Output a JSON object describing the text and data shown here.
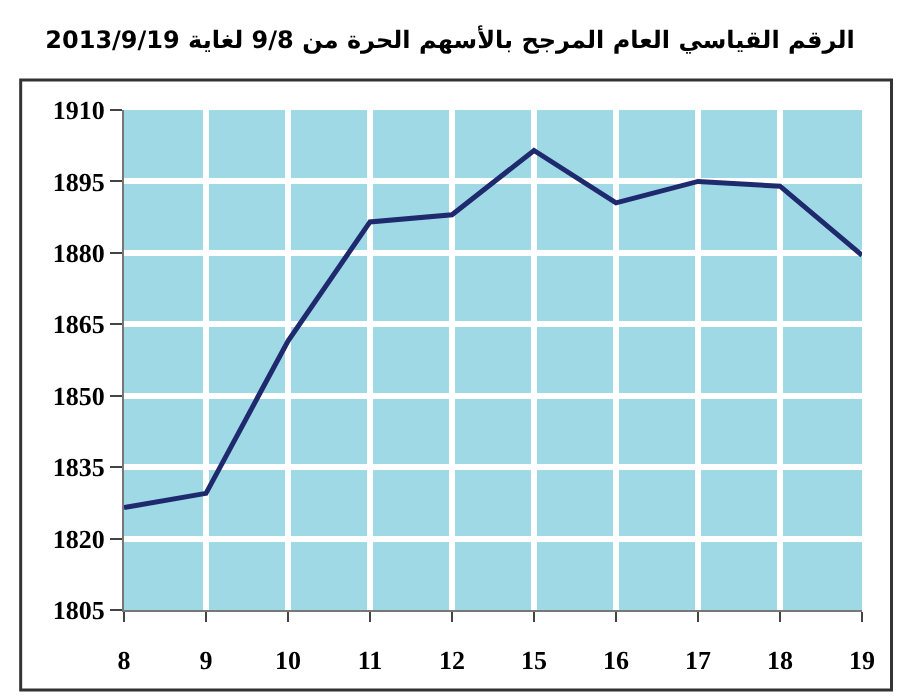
{
  "chart_data": {
    "type": "line",
    "title": "الرقم القياسي العام المرجح بالأسهم الحرة من 9/8 لغاية 2013/9/19",
    "categories": [
      "8",
      "9",
      "10",
      "11",
      "12",
      "15",
      "16",
      "17",
      "18",
      "19"
    ],
    "series": [
      {
        "color": "#1f2a6e",
        "values": [
          1826.5,
          1829.5,
          1861.5,
          1886.5,
          1888,
          1901.5,
          1890.5,
          1895,
          1894,
          1879.5
        ]
      }
    ],
    "ylim": [
      1805,
      1910
    ],
    "yticks": [
      1805,
      1820,
      1835,
      1850,
      1865,
      1880,
      1895,
      1910
    ],
    "grid": true,
    "legend": false,
    "marker": "none",
    "line_style": "solid"
  }
}
